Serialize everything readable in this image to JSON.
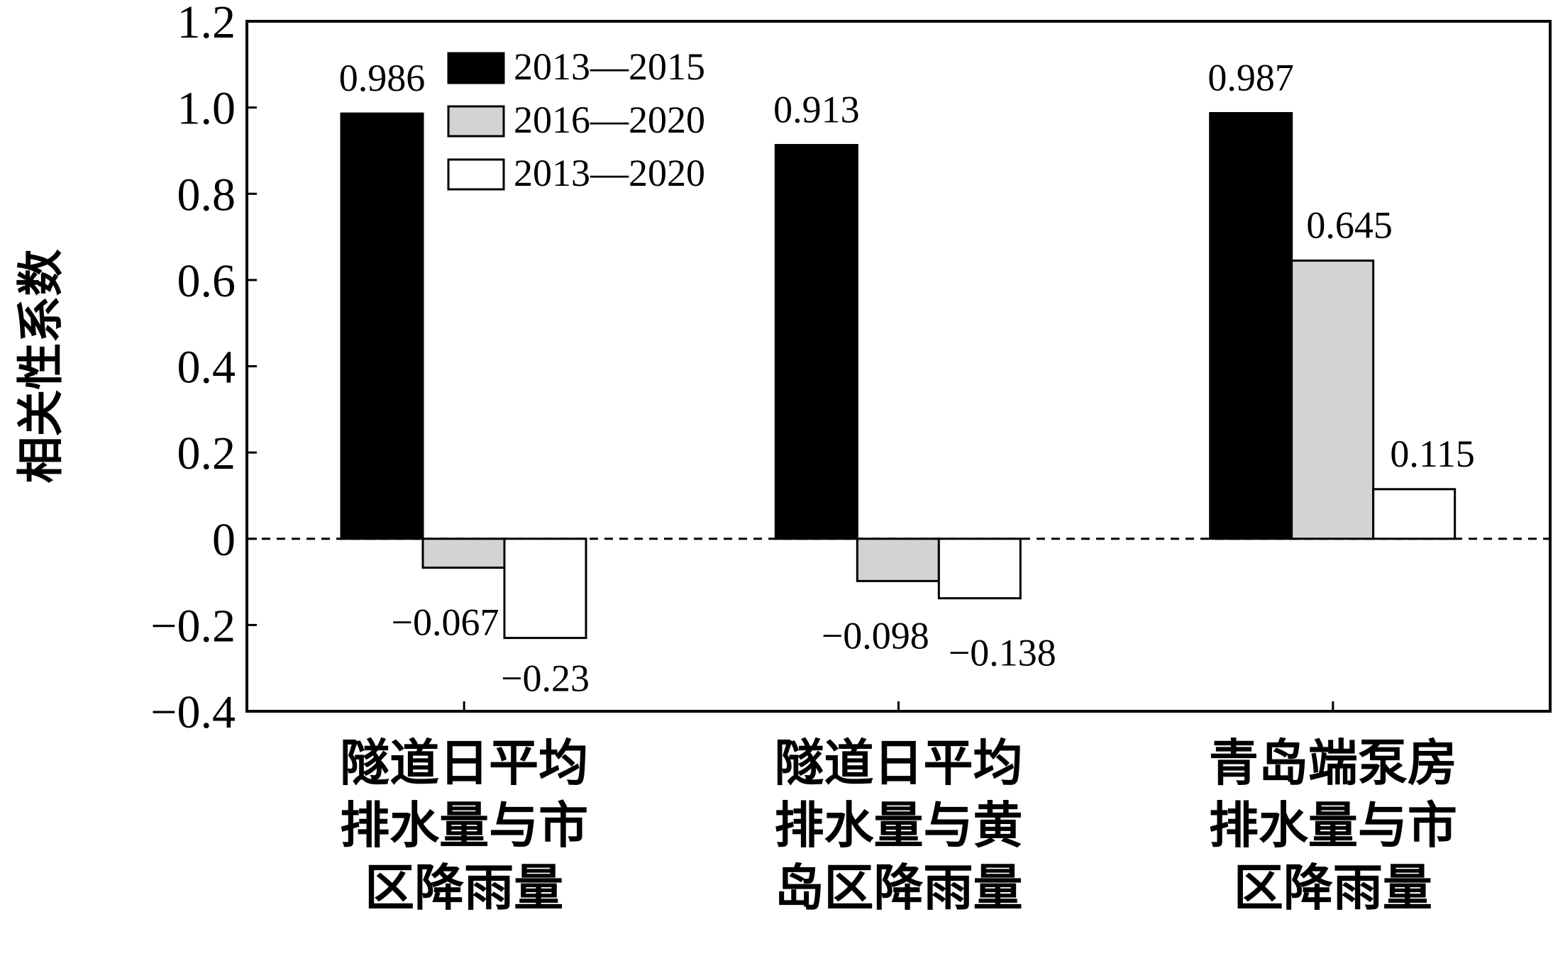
{
  "chart_data": {
    "type": "bar",
    "ylabel": "相关性系数",
    "ylim": [
      -0.4,
      1.2
    ],
    "yticks": [
      -0.4,
      -0.2,
      0,
      0.2,
      0.4,
      0.6,
      0.8,
      1.0,
      1.2
    ],
    "ytick_labels": [
      "−0.4",
      "−0.2",
      "0",
      "0.2",
      "0.4",
      "0.6",
      "0.8",
      "1.0",
      "1.2"
    ],
    "zero_line": "dashed",
    "grid": false,
    "legend_position": "top-left",
    "categories": [
      [
        "隧道日平均",
        "排水量与市",
        "区降雨量"
      ],
      [
        "隧道日平均",
        "排水量与黄",
        "岛区降雨量"
      ],
      [
        "青岛端泵房",
        "排水量与市",
        "区降雨量"
      ]
    ],
    "series": [
      {
        "name": "2013—2015",
        "color": "#000000",
        "values": [
          0.986,
          0.913,
          0.987
        ],
        "labels": [
          "0.986",
          "0.913",
          "0.987"
        ]
      },
      {
        "name": "2016—2020",
        "color": "#d3d3d3",
        "values": [
          -0.067,
          -0.098,
          0.645
        ],
        "labels": [
          "−0.067",
          "−0.098",
          "0.645"
        ]
      },
      {
        "name": "2013—2020",
        "color": "#ffffff",
        "values": [
          -0.23,
          -0.138,
          0.115
        ],
        "labels": [
          "−0.23",
          "−0.138",
          "0.115"
        ]
      }
    ]
  }
}
